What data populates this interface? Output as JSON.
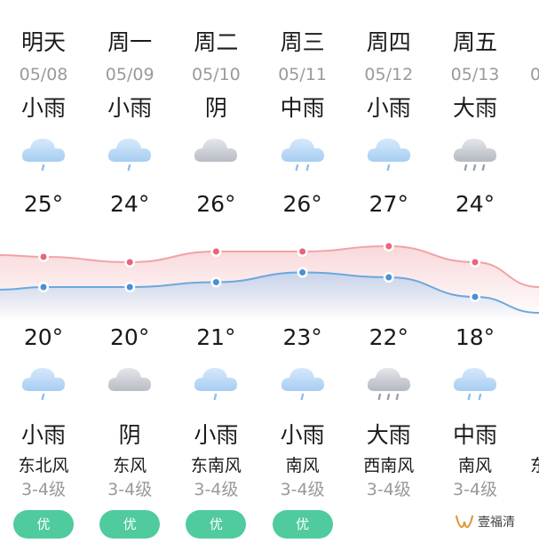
{
  "days": [
    {
      "day": "明天",
      "date": "05/08",
      "weather_day": "小雨",
      "icon_day": "light-rain-icon",
      "high": "25°",
      "low": "20°",
      "icon_night": "light-rain-icon",
      "weather_night": "小雨",
      "wind_dir": "东北风",
      "wind_level": "3-4级",
      "aqi": "优"
    },
    {
      "day": "周一",
      "date": "05/09",
      "weather_day": "小雨",
      "icon_day": "light-rain-icon",
      "high": "24°",
      "low": "20°",
      "icon_night": "overcast-icon",
      "weather_night": "阴",
      "wind_dir": "东风",
      "wind_level": "3-4级",
      "aqi": "优"
    },
    {
      "day": "周二",
      "date": "05/10",
      "weather_day": "阴",
      "icon_day": "overcast-icon",
      "high": "26°",
      "low": "21°",
      "icon_night": "light-rain-icon",
      "weather_night": "小雨",
      "wind_dir": "东南风",
      "wind_level": "3-4级",
      "aqi": "优"
    },
    {
      "day": "周三",
      "date": "05/11",
      "weather_day": "中雨",
      "icon_day": "moderate-rain-icon",
      "high": "26°",
      "low": "23°",
      "icon_night": "light-rain-icon",
      "weather_night": "小雨",
      "wind_dir": "南风",
      "wind_level": "3-4级",
      "aqi": "优"
    },
    {
      "day": "周四",
      "date": "05/12",
      "weather_day": "小雨",
      "icon_day": "light-rain-icon",
      "high": "27°",
      "low": "22°",
      "icon_night": "heavy-rain-icon",
      "weather_night": "大雨",
      "wind_dir": "西南风",
      "wind_level": "3-4级",
      "aqi": ""
    },
    {
      "day": "周五",
      "date": "05/13",
      "weather_day": "大雨",
      "icon_day": "heavy-rain-icon",
      "high": "24°",
      "low": "18°",
      "icon_night": "moderate-rain-icon",
      "weather_night": "中雨",
      "wind_dir": "南风",
      "wind_level": "3-4级",
      "aqi": ""
    }
  ],
  "partial_next_day": {
    "date": "0",
    "wind_dir": "东"
  },
  "temperature_curve": {
    "high_values": [
      25,
      24,
      26,
      26,
      27,
      24
    ],
    "low_values": [
      20,
      20,
      21,
      23,
      22,
      18
    ]
  },
  "colors": {
    "high_line": "#f0a3a8",
    "high_dot": "#e8667a",
    "low_line": "#6aa8df",
    "low_dot": "#4a8fd6",
    "aqi_good": "#4fcb9e"
  },
  "watermark": {
    "text": "壹福清",
    "icon": "wechat-channel-icon"
  }
}
